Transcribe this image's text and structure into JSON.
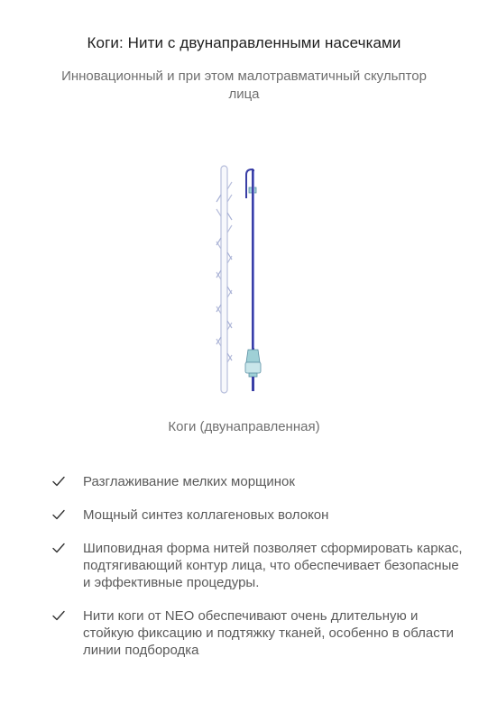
{
  "header": {
    "title": "Коги: Нити с двунаправленными насечками",
    "subtitle": "Инновационный и при этом малотравматичный скульптор лица"
  },
  "product": {
    "image_icon": "cog-thread-with-cannula-icon",
    "caption": "Коги (двунаправленная)"
  },
  "benefits": [
    {
      "icon": "check-icon",
      "text": "Разглаживание мелких морщинок"
    },
    {
      "icon": "check-icon",
      "text": "Мощный синтез коллагеновых волокон"
    },
    {
      "icon": "check-icon",
      "text": "Шиповидная форма нитей позволяет сформировать каркас, подтягивающий контур лица, что обеспечивает безопасные и эффективные процедуры."
    },
    {
      "icon": "check-icon",
      "text": "Нити коги от NEO обеспечивают очень длительную и стойкую фиксацию и подтяжку тканей, особенно в области линии подбородка"
    }
  ],
  "colors": {
    "thread_outline": "#b8bfdc",
    "cannula_blue": "#3a3fa6",
    "hub_teal": "#9fd0d6",
    "check": "#333333"
  }
}
